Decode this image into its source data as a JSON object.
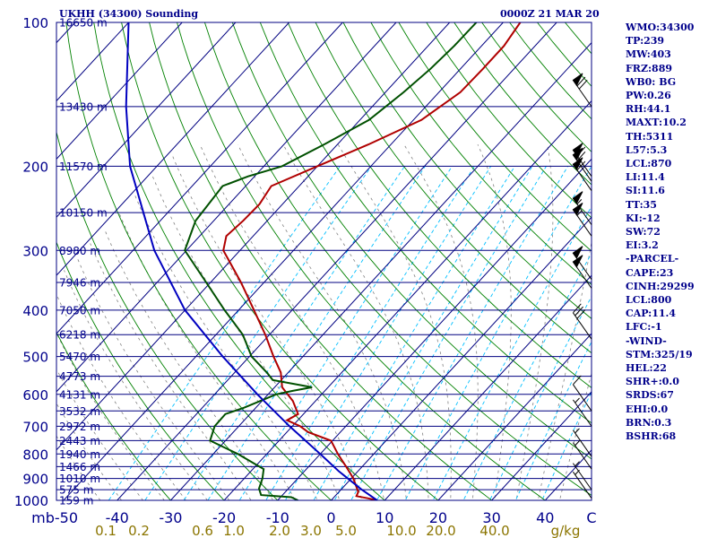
{
  "header": {
    "station": "UKHH (34300) Sounding",
    "time": "0000Z 21 MAR 20"
  },
  "indices": [
    "WMO:34300",
    "TP:239",
    "MW:403",
    "FRZ:889",
    "WB0: BG",
    "PW:0.26",
    "RH:44.1",
    "MAXT:10.2",
    "TH:5311",
    "L57:5.3",
    "LCL:870",
    "LI:11.4",
    "SI:11.6",
    "TT:35",
    "KI:-12",
    "SW:72",
    "EI:3.2",
    "-PARCEL-",
    "CAPE:23",
    "CINH:29299",
    "LCL:800",
    "CAP:11.4",
    "LFC:-1",
    "-WIND-",
    "STM:325/19",
    "HEL:22",
    "SHR+:0.0",
    "SRDS:67",
    "EHI:0.0",
    "BRN:0.3",
    "BSHR:68"
  ],
  "colors": {
    "isobar": "#000080",
    "isotherm": "#000080",
    "dry_adiabat": "#008000",
    "moist_adiabat": "#808080",
    "mixing_ratio": "#00bfff",
    "temperature": "#b00000",
    "dewpoint": "#005000",
    "parcel": "#0000c0",
    "labels": "#00008b",
    "mixing_labels": "#8b7500",
    "wind": "#000000"
  },
  "chart_data": {
    "type": "skew-t",
    "pressure_axis": {
      "ticks": [
        100,
        200,
        300,
        400,
        500,
        600,
        700,
        800,
        900,
        1000
      ],
      "range_hpa": [
        1000,
        100
      ],
      "scale": "log"
    },
    "temperature_axis": {
      "ticks": [
        -50,
        -40,
        -30,
        -20,
        -10,
        0,
        10,
        20,
        30,
        40
      ],
      "first_label": "mb-50",
      "end_label": "C"
    },
    "mixing_ratio_axis": {
      "ticks": [
        "0.1",
        "0.2",
        "0.6",
        "1.0",
        "2.0",
        "3.0",
        "5.0",
        "10.0",
        "20.0",
        "40.0"
      ],
      "unit": "g/kg"
    },
    "heights": [
      {
        "p": 100,
        "label": "16650 m"
      },
      {
        "p": 150,
        "label": "13430 m"
      },
      {
        "p": 200,
        "label": "11570 m"
      },
      {
        "p": 250,
        "label": "10150 m"
      },
      {
        "p": 300,
        "label": "8980 m"
      },
      {
        "p": 350,
        "label": "7946 m"
      },
      {
        "p": 400,
        "label": "7050 m"
      },
      {
        "p": 450,
        "label": "6218 m"
      },
      {
        "p": 500,
        "label": "5470 m"
      },
      {
        "p": 550,
        "label": "4773 m"
      },
      {
        "p": 600,
        "label": "4131 m"
      },
      {
        "p": 650,
        "label": "3532 m"
      },
      {
        "p": 700,
        "label": "2972 m"
      },
      {
        "p": 750,
        "label": "2443 m"
      },
      {
        "p": 800,
        "label": "1940 m"
      },
      {
        "p": 850,
        "label": "1466 m"
      },
      {
        "p": 900,
        "label": "1010 m"
      },
      {
        "p": 950,
        "label": "575 m"
      },
      {
        "p": 1000,
        "label": "159 m"
      }
    ],
    "series": [
      {
        "name": "temperature",
        "points": [
          [
            1000,
            8.6
          ],
          [
            990,
            6.5
          ],
          [
            980,
            4.0
          ],
          [
            960,
            3.6
          ],
          [
            900,
            0.4
          ],
          [
            850,
            -3.0
          ],
          [
            800,
            -6.7
          ],
          [
            750,
            -10.3
          ],
          [
            720,
            -16.0
          ],
          [
            700,
            -18.5
          ],
          [
            680,
            -22.0
          ],
          [
            660,
            -21.0
          ],
          [
            620,
            -24.2
          ],
          [
            580,
            -28.6
          ],
          [
            540,
            -31.4
          ],
          [
            500,
            -35.5
          ],
          [
            450,
            -40.8
          ],
          [
            400,
            -47.1
          ],
          [
            350,
            -54.3
          ],
          [
            300,
            -63.1
          ],
          [
            280,
            -65.0
          ],
          [
            260,
            -64.5
          ],
          [
            240,
            -64.3
          ],
          [
            220,
            -65.2
          ],
          [
            200,
            -60.0
          ],
          [
            180,
            -54.2
          ],
          [
            160,
            -48.5
          ],
          [
            140,
            -46.0
          ],
          [
            125,
            -45.8
          ],
          [
            112,
            -45.8
          ],
          [
            100,
            -46.8
          ]
        ]
      },
      {
        "name": "dewpoint",
        "points": [
          [
            1000,
            -6.2
          ],
          [
            985,
            -8.0
          ],
          [
            975,
            -14.0
          ],
          [
            945,
            -15.5
          ],
          [
            900,
            -16.6
          ],
          [
            860,
            -18.0
          ],
          [
            800,
            -25.4
          ],
          [
            750,
            -32.9
          ],
          [
            700,
            -34.5
          ],
          [
            660,
            -34.6
          ],
          [
            640,
            -32.2
          ],
          [
            600,
            -28.5
          ],
          [
            590,
            -26.0
          ],
          [
            580,
            -23.0
          ],
          [
            560,
            -31.6
          ],
          [
            540,
            -34.0
          ],
          [
            500,
            -39.6
          ],
          [
            450,
            -45.0
          ],
          [
            400,
            -52.6
          ],
          [
            350,
            -60.8
          ],
          [
            300,
            -70.3
          ],
          [
            260,
            -73.4
          ],
          [
            220,
            -74.3
          ],
          [
            210,
            -71.2
          ],
          [
            200,
            -66.6
          ],
          [
            180,
            -62.5
          ],
          [
            160,
            -58.3
          ],
          [
            140,
            -56.6
          ],
          [
            125,
            -55.6
          ],
          [
            112,
            -55.1
          ],
          [
            100,
            -55.0
          ]
        ]
      },
      {
        "name": "parcel",
        "points": [
          [
            1000,
            8.6
          ],
          [
            950,
            3.9
          ],
          [
            870,
            -3.5
          ],
          [
            800,
            -10.0
          ],
          [
            700,
            -20.5
          ],
          [
            600,
            -32.0
          ],
          [
            500,
            -45.0
          ],
          [
            400,
            -60.0
          ],
          [
            300,
            -76.0
          ],
          [
            200,
            -95.0
          ],
          [
            150,
            -106.0
          ],
          [
            100,
            -120.0
          ]
        ]
      }
    ],
    "winds": [
      {
        "p": 150,
        "dir": 325,
        "spd": 70
      },
      {
        "p": 210,
        "dir": 325,
        "spd": 60
      },
      {
        "p": 215,
        "dir": 325,
        "spd": 60
      },
      {
        "p": 225,
        "dir": 325,
        "spd": 60
      },
      {
        "p": 265,
        "dir": 325,
        "spd": 55
      },
      {
        "p": 280,
        "dir": 325,
        "spd": 55
      },
      {
        "p": 345,
        "dir": 325,
        "spd": 50
      },
      {
        "p": 360,
        "dir": 325,
        "spd": 50
      },
      {
        "p": 460,
        "dir": 325,
        "spd": 30
      },
      {
        "p": 650,
        "dir": 325,
        "spd": 10
      },
      {
        "p": 700,
        "dir": 325,
        "spd": 5
      },
      {
        "p": 810,
        "dir": 325,
        "spd": 5
      },
      {
        "p": 860,
        "dir": 325,
        "spd": 5
      },
      {
        "p": 950,
        "dir": 325,
        "spd": 5
      },
      {
        "p": 990,
        "dir": 325,
        "spd": 5
      }
    ],
    "grid": true
  }
}
